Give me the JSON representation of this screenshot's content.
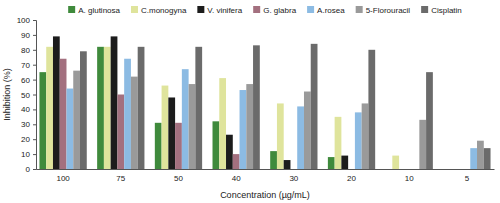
{
  "chart_data": {
    "type": "bar",
    "x_label": "Concentration (µg/mL)",
    "y_label": "Inhibition (%)",
    "categories": [
      "100",
      "75",
      "50",
      "40",
      "30",
      "20",
      "10",
      "5"
    ],
    "series": [
      {
        "name": "A. glutinosa",
        "color": "#3f8a3c",
        "values": [
          65,
          82,
          31,
          32,
          12,
          8,
          0,
          0
        ]
      },
      {
        "name": "C.monogyna",
        "color": "#dfe49c",
        "values": [
          82,
          82,
          56,
          61,
          44,
          35,
          9,
          0
        ]
      },
      {
        "name": "V. vinifera",
        "color": "#1c1c1c",
        "values": [
          89,
          89,
          48,
          23,
          6,
          9,
          0,
          0
        ]
      },
      {
        "name": "G. glabra",
        "color": "#a3707f",
        "values": [
          74,
          50,
          31,
          10,
          0,
          0,
          0,
          0
        ]
      },
      {
        "name": "A.rosea",
        "color": "#8cbbe3",
        "values": [
          54,
          74,
          67,
          53,
          42,
          38,
          0,
          14
        ]
      },
      {
        "name": "5-Florouracil",
        "color": "#9a9a9a",
        "values": [
          66,
          62,
          57,
          57,
          52,
          44,
          33,
          19
        ]
      },
      {
        "name": "Cisplatin",
        "color": "#6b6b6b",
        "values": [
          79,
          82,
          82,
          83,
          84,
          80,
          65,
          14
        ]
      }
    ],
    "ylim": [
      0,
      100
    ],
    "yticks": [
      0,
      10,
      20,
      30,
      40,
      50,
      60,
      70,
      80,
      90,
      100
    ],
    "grid": false,
    "legend": "top"
  }
}
